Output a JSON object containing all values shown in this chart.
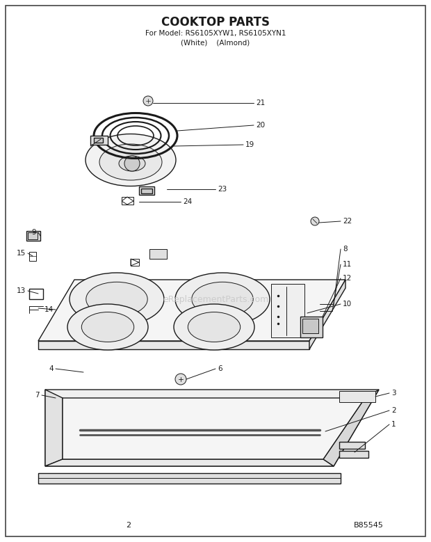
{
  "title": "COOKTOP PARTS",
  "subtitle_line1": "For Model: RS6105XYW1, RS6105XYN1",
  "subtitle_line2": "(White)    (Almond)",
  "page_number": "2",
  "doc_number": "B85545",
  "watermark": "eReplacementParts.com",
  "bg": "#ffffff",
  "lc": "#1a1a1a",
  "tc": "#1a1a1a"
}
